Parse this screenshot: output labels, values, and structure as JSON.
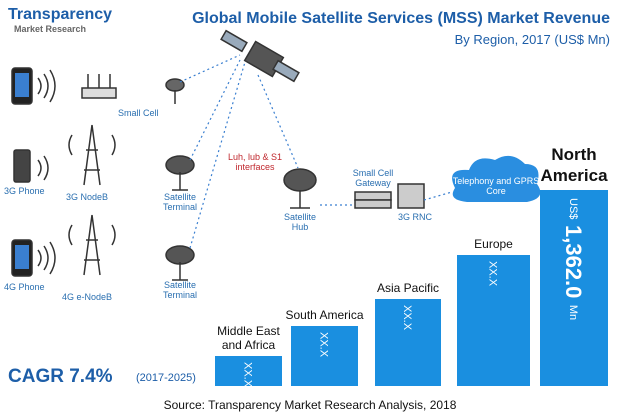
{
  "chart_data": {
    "type": "bar",
    "title": "Global Mobile Satellite Services (MSS) Market Revenue",
    "subtitle": "By Region, 2017 (US$ Mn)",
    "categories": [
      "Middle East and Africa",
      "South America",
      "Asia Pacific",
      "Europe",
      "North America"
    ],
    "values": [
      210,
      419,
      608,
      908,
      1362.0
    ],
    "value_labels": [
      "XX.X",
      "XX.X",
      "XX.X",
      "XX.X",
      "1,362.0"
    ],
    "unit_prefix": "US$",
    "unit_suffix": "Mn",
    "color": "#1a8fe0",
    "cagr": "CAGR 7.4%",
    "cagr_period": "(2017-2025)",
    "source": "Source: Transparency Market Research Analysis, 2018"
  },
  "logo": {
    "line1": "Transparency",
    "line2": "Market Research"
  },
  "diagram": {
    "small_cell": "Small Cell",
    "nodeb_3g": "3G NodeB",
    "phone_3g": "3G Phone",
    "phone_4g": "4G Phone",
    "enodeb_4g": "4G e-NodeB",
    "terminal_1": "Satellite Terminal",
    "terminal_2": "Satellite Terminal",
    "interfaces": "Luh, lub & S1 interfaces",
    "hub": "Satellite Hub",
    "gateway": "Small Cell Gateway",
    "rnc": "3G RNC",
    "core": "Telephony and GPRS Core"
  }
}
